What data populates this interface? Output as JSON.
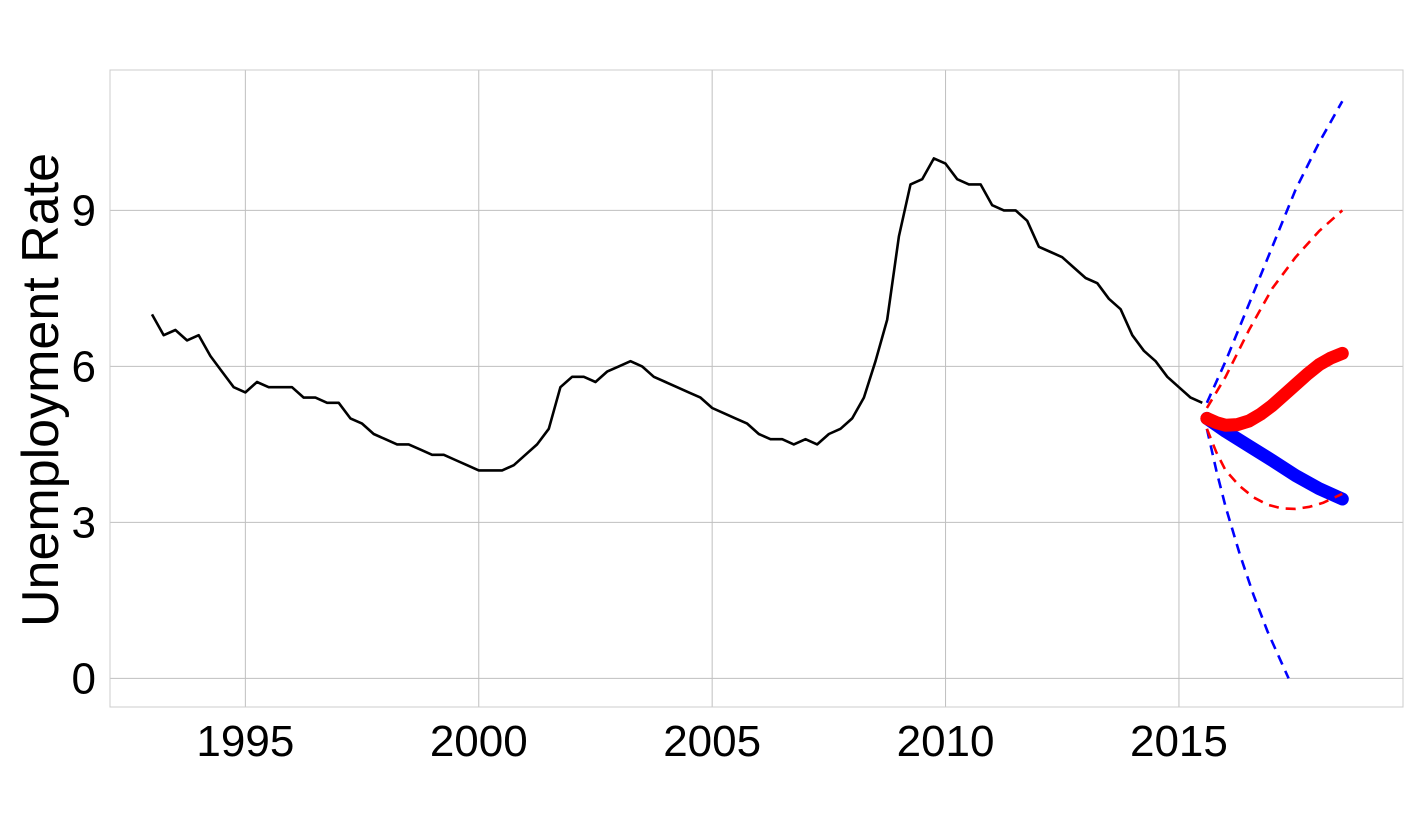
{
  "chart_data": {
    "type": "line",
    "title": "",
    "xlabel": "",
    "ylabel": "Unemployment Rate",
    "xlim": [
      1992.1,
      2019.8
    ],
    "ylim": [
      -0.55,
      11.7
    ],
    "x_ticks": [
      "1995",
      "2000",
      "2005",
      "2010",
      "2015"
    ],
    "y_ticks": [
      "0",
      "3",
      "6",
      "9"
    ],
    "grid": true,
    "legend": "none",
    "colors": {
      "history": "#000000",
      "forecast_blue": "#0000ff",
      "forecast_red": "#ff0000",
      "grid": "#bfbfbf"
    },
    "series": [
      {
        "style": "solid",
        "color": "#000000",
        "x": [
          1993.0,
          1993.25,
          1993.5,
          1993.75,
          1994.0,
          1994.25,
          1994.5,
          1994.75,
          1995.0,
          1995.25,
          1995.5,
          1995.75,
          1996.0,
          1996.25,
          1996.5,
          1996.75,
          1997.0,
          1997.25,
          1997.5,
          1997.75,
          1998.0,
          1998.25,
          1998.5,
          1998.75,
          1999.0,
          1999.25,
          1999.5,
          1999.75,
          2000.0,
          2000.25,
          2000.5,
          2000.75,
          2001.0,
          2001.25,
          2001.5,
          2001.75,
          2002.0,
          2002.25,
          2002.5,
          2002.75,
          2003.0,
          2003.25,
          2003.5,
          2003.75,
          2004.0,
          2004.25,
          2004.5,
          2004.75,
          2005.0,
          2005.25,
          2005.5,
          2005.75,
          2006.0,
          2006.25,
          2006.5,
          2006.75,
          2007.0,
          2007.25,
          2007.5,
          2007.75,
          2008.0,
          2008.25,
          2008.5,
          2008.75,
          2009.0,
          2009.25,
          2009.5,
          2009.75,
          2010.0,
          2010.25,
          2010.5,
          2010.75,
          2011.0,
          2011.25,
          2011.5,
          2011.75,
          2012.0,
          2012.25,
          2012.5,
          2012.75,
          2013.0,
          2013.25,
          2013.5,
          2013.75,
          2014.0,
          2014.25,
          2014.5,
          2014.75,
          2015.0,
          2015.25,
          2015.5
        ],
        "values": [
          7.0,
          6.6,
          6.7,
          6.5,
          6.6,
          6.2,
          5.9,
          5.6,
          5.5,
          5.7,
          5.6,
          5.6,
          5.6,
          5.4,
          5.4,
          5.3,
          5.3,
          5.0,
          4.9,
          4.7,
          4.6,
          4.5,
          4.5,
          4.4,
          4.3,
          4.3,
          4.2,
          4.1,
          4.0,
          4.0,
          4.0,
          4.1,
          4.3,
          4.5,
          4.8,
          5.6,
          5.8,
          5.8,
          5.7,
          5.9,
          6.0,
          6.1,
          6.0,
          5.8,
          5.7,
          5.6,
          5.5,
          5.4,
          5.2,
          5.1,
          5.0,
          4.9,
          4.7,
          4.6,
          4.6,
          4.5,
          4.6,
          4.5,
          4.7,
          4.8,
          5.0,
          5.4,
          6.1,
          6.9,
          8.5,
          9.5,
          9.6,
          10.0,
          9.9,
          9.6,
          9.5,
          9.5,
          9.1,
          9.0,
          9.0,
          8.8,
          8.3,
          8.2,
          8.1,
          7.9,
          7.7,
          7.6,
          7.3,
          7.1,
          6.6,
          6.3,
          6.1,
          5.8,
          5.6,
          5.4,
          5.3
        ]
      },
      {
        "style": "thick",
        "color": "#0000ff",
        "x": [
          2015.6,
          2016.0,
          2016.5,
          2017.0,
          2017.5,
          2018.0,
          2018.5
        ],
        "values": [
          5.0,
          4.75,
          4.47,
          4.19,
          3.9,
          3.65,
          3.45
        ]
      },
      {
        "style": "dashed",
        "color": "#0000ff",
        "x": [
          2015.6,
          2016.0,
          2016.5,
          2017.0,
          2017.5,
          2018.0,
          2018.5
        ],
        "values": [
          5.3,
          6.1,
          7.2,
          8.3,
          9.4,
          10.3,
          11.1
        ]
      },
      {
        "style": "dashed",
        "color": "#0000ff",
        "x": [
          2015.6,
          2015.8,
          2016.0,
          2016.3,
          2016.6,
          2016.9,
          2017.2,
          2017.35
        ],
        "values": [
          4.8,
          4.0,
          3.3,
          2.4,
          1.6,
          0.9,
          0.3,
          0.0
        ]
      },
      {
        "style": "thick",
        "color": "#ff0000",
        "x": [
          2015.6,
          2015.8,
          2016.0,
          2016.25,
          2016.5,
          2016.75,
          2017.0,
          2017.25,
          2017.5,
          2017.75,
          2018.0,
          2018.25,
          2018.5
        ],
        "values": [
          5.0,
          4.92,
          4.87,
          4.88,
          4.95,
          5.08,
          5.25,
          5.45,
          5.65,
          5.85,
          6.03,
          6.16,
          6.25
        ]
      },
      {
        "style": "dashed",
        "color": "#ff0000",
        "x": [
          2015.6,
          2016.0,
          2016.5,
          2017.0,
          2017.5,
          2018.0,
          2018.5
        ],
        "values": [
          5.2,
          5.8,
          6.7,
          7.5,
          8.1,
          8.6,
          9.0
        ]
      },
      {
        "style": "dashed",
        "color": "#ff0000",
        "x": [
          2015.6,
          2015.8,
          2016.0,
          2016.3,
          2016.6,
          2016.9,
          2017.2,
          2017.5,
          2017.8,
          2018.1,
          2018.5
        ],
        "values": [
          4.8,
          4.35,
          4.0,
          3.7,
          3.48,
          3.34,
          3.27,
          3.26,
          3.3,
          3.38,
          3.55
        ]
      }
    ]
  }
}
